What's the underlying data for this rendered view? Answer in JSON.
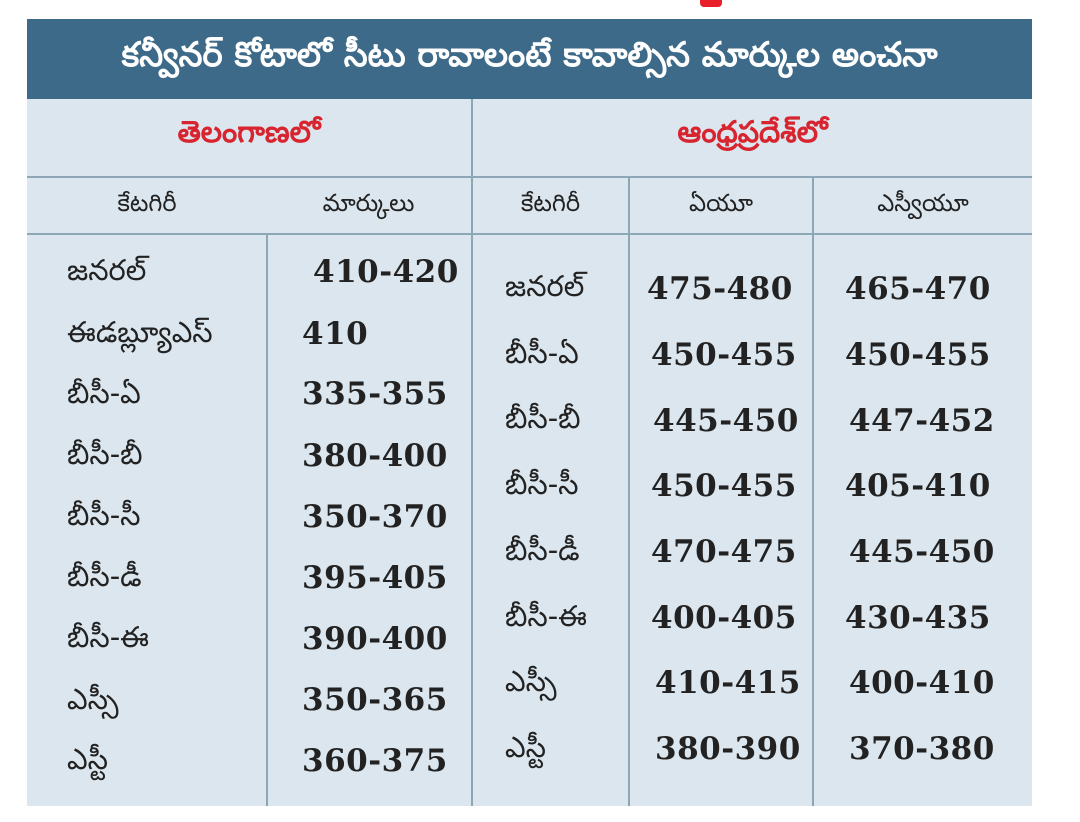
{
  "title": "కన్వీనర్ కోటాలో సీటు రావాలంటే  కావాల్సిన మార్కుల అంచనా",
  "telangana": {
    "heading": "తెలంగాణలో",
    "col_category": "కేటగిరీ",
    "col_marks": "మార్కులు",
    "rows": [
      {
        "category": "జనరల్",
        "marks": "410-420"
      },
      {
        "category": "ఈడబ్ల్యూఎస్",
        "marks": "410"
      },
      {
        "category": "బీసీ-ఏ",
        "marks": "335-355"
      },
      {
        "category": "బీసీ-బీ",
        "marks": "380-400"
      },
      {
        "category": "బీసీ-సీ",
        "marks": "350-370"
      },
      {
        "category": "బీసీ-డీ",
        "marks": "395-405"
      },
      {
        "category": "బీసీ-ఈ",
        "marks": "390-400"
      },
      {
        "category": "ఎస్సీ",
        "marks": "350-365"
      },
      {
        "category": "ఎస్టీ",
        "marks": "360-375"
      }
    ]
  },
  "andhra": {
    "heading": "ఆంధ్రప్రదేశ్‌లో",
    "col_category": "కేటగిరీ",
    "col_au": "ఏయూ",
    "col_svu": "ఎస్వీయూ",
    "rows": [
      {
        "category": "జనరల్",
        "au": "475-480",
        "svu": "465-470"
      },
      {
        "category": "బీసీ-ఏ",
        "au": "450-455",
        "svu": "450-455"
      },
      {
        "category": "బీసీ-బీ",
        "au": "445-450",
        "svu": "447-452"
      },
      {
        "category": "బీసీ-సీ",
        "au": "450-455",
        "svu": "405-410"
      },
      {
        "category": "బీసీ-డీ",
        "au": "470-475",
        "svu": "445-450"
      },
      {
        "category": "బీసీ-ఈ",
        "au": "400-405",
        "svu": "430-435"
      },
      {
        "category": "ఎస్సీ",
        "au": "410-415",
        "svu": "400-410"
      },
      {
        "category": "ఎస్టీ",
        "au": "380-390",
        "svu": "370-380"
      }
    ]
  }
}
